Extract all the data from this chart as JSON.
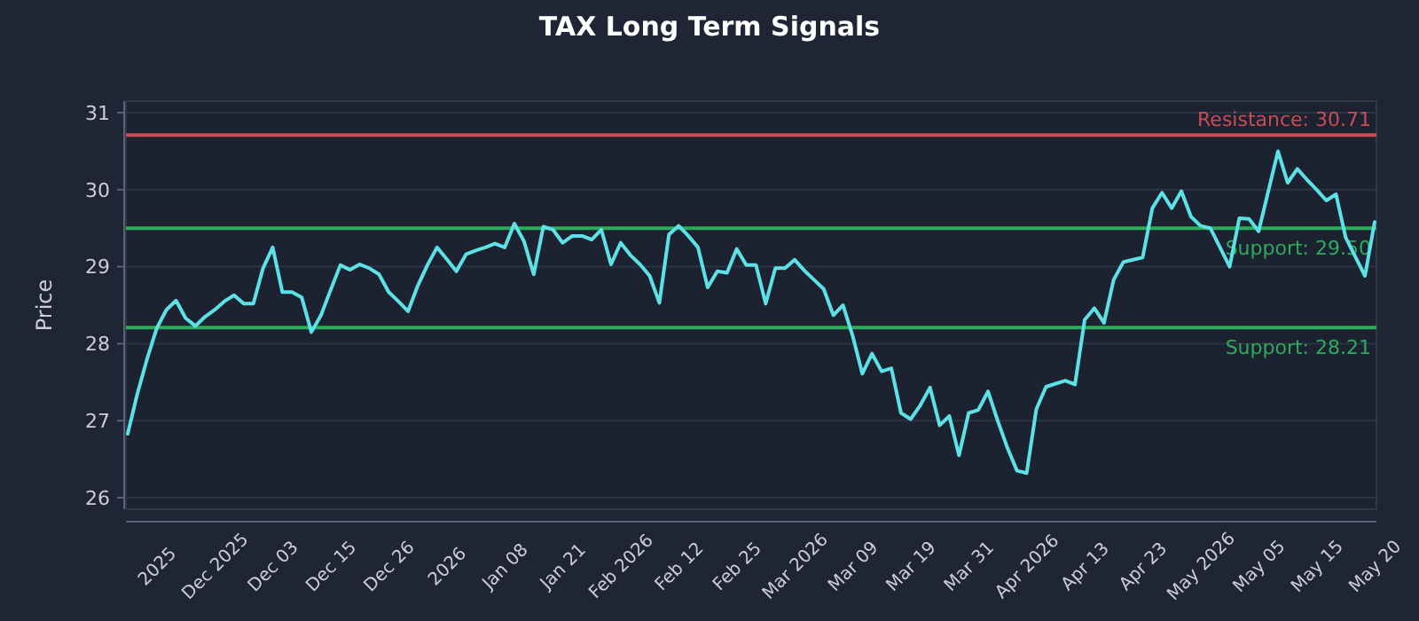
{
  "chart_data": {
    "type": "line",
    "title": "TAX Long Term Signals",
    "ylabel": "Price",
    "categories": [
      null,
      null,
      null,
      "2025",
      null,
      null,
      null,
      null,
      null,
      "Dec 2025",
      null,
      null,
      null,
      null,
      null,
      "Dec 03",
      null,
      null,
      null,
      null,
      null,
      "Dec 15",
      null,
      null,
      null,
      null,
      null,
      "Dec 26",
      null,
      null,
      null,
      null,
      null,
      "2026",
      null,
      null,
      null,
      null,
      null,
      "Jan 08",
      null,
      null,
      null,
      null,
      null,
      "Jan 21",
      null,
      null,
      null,
      null,
      null,
      "Feb 2026",
      null,
      null,
      null,
      null,
      null,
      "Feb 12",
      null,
      null,
      null,
      null,
      null,
      "Feb 25",
      null,
      null,
      null,
      null,
      null,
      "Mar 2026",
      null,
      null,
      null,
      null,
      null,
      "Mar 09",
      null,
      null,
      null,
      null,
      null,
      "Mar 19",
      null,
      null,
      null,
      null,
      null,
      "Mar 31",
      null,
      null,
      null,
      null,
      null,
      "Apr 2026",
      null,
      null,
      null,
      null,
      null,
      "Apr 13",
      null,
      null,
      null,
      null,
      null,
      "Apr 23",
      null,
      null,
      null,
      null,
      null,
      "May 2026",
      null,
      null,
      null,
      null,
      null,
      "May 05",
      null,
      null,
      null,
      null,
      null,
      "May 15",
      null,
      null,
      null,
      null,
      null,
      "May 20"
    ],
    "series": [
      {
        "color": "#5ce1e6",
        "values": [
          26.83,
          27.35,
          27.8,
          28.2,
          28.44,
          28.56,
          28.33,
          28.23,
          28.35,
          28.44,
          28.55,
          28.63,
          28.52,
          28.52,
          28.98,
          29.25,
          28.67,
          28.67,
          28.6,
          28.15,
          28.37,
          28.7,
          29.02,
          28.96,
          29.03,
          28.98,
          28.9,
          28.67,
          28.55,
          28.42,
          28.75,
          29.02,
          29.25,
          29.1,
          28.94,
          29.16,
          29.21,
          29.25,
          29.3,
          29.25,
          29.56,
          29.33,
          28.9,
          29.52,
          29.48,
          29.31,
          29.4,
          29.4,
          29.35,
          29.48,
          29.03,
          29.31,
          29.15,
          29.03,
          28.88,
          28.53,
          29.42,
          29.53,
          29.4,
          29.25,
          28.73,
          28.94,
          28.92,
          29.23,
          29.02,
          29.02,
          28.52,
          28.98,
          28.98,
          29.09,
          28.95,
          28.83,
          28.71,
          28.37,
          28.5,
          28.1,
          27.61,
          27.87,
          27.64,
          27.68,
          27.1,
          27.02,
          27.2,
          27.43,
          26.94,
          27.06,
          26.55,
          27.1,
          27.14,
          27.38,
          27.0,
          26.65,
          26.35,
          26.32,
          27.15,
          27.44,
          27.48,
          27.52,
          27.47,
          28.31,
          28.46,
          28.27,
          28.83,
          29.06,
          29.09,
          29.12,
          29.76,
          29.96,
          29.76,
          29.98,
          29.65,
          29.53,
          29.5,
          29.25,
          29.0,
          29.63,
          29.62,
          29.46,
          29.98,
          30.5,
          30.09,
          30.27,
          30.13,
          30.0,
          29.86,
          29.94,
          29.38,
          29.13,
          28.88,
          29.58
        ]
      }
    ],
    "ylim": [
      25.85,
      31.15
    ],
    "yticks": [
      26,
      27,
      28,
      29,
      30,
      31
    ],
    "grid": "y",
    "line_style": "solid",
    "ref_lines": [
      {
        "axis": "y",
        "value": 30.71,
        "label": "Resistance: 30.71",
        "color": "#c94c55"
      },
      {
        "axis": "y",
        "value": 29.5,
        "label": "Support: 29.50",
        "color": "#2eaa5c"
      },
      {
        "axis": "y",
        "value": 28.21,
        "label": "Support: 28.21",
        "color": "#2eaa5c"
      }
    ]
  }
}
